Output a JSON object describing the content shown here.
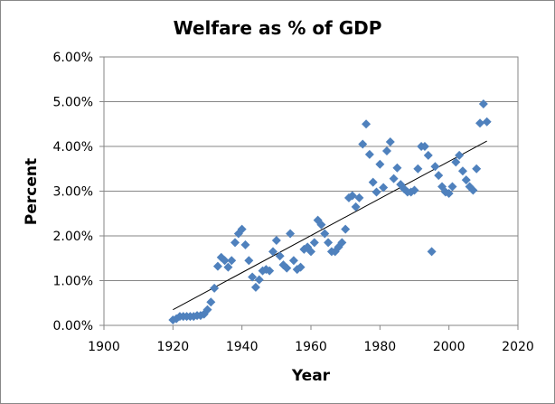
{
  "chart_data": {
    "type": "scatter",
    "title": "Welfare as % of GDP",
    "xlabel": "Year",
    "ylabel": "Percent",
    "xlim": [
      1900,
      2020
    ],
    "ylim": [
      0,
      6
    ],
    "xticks": [
      1900,
      1920,
      1940,
      1960,
      1980,
      2000,
      2020
    ],
    "yticks": [
      0,
      1,
      2,
      3,
      4,
      5,
      6
    ],
    "ytick_labels": [
      "0.00%",
      "1.00%",
      "2.00%",
      "3.00%",
      "4.00%",
      "5.00%",
      "6.00%"
    ],
    "grid": "horizontal",
    "marker_color": "#4f81bd",
    "trendline": {
      "type": "linear",
      "x": [
        1920,
        2011
      ],
      "y": [
        0.35,
        4.12
      ]
    },
    "x": [
      1920,
      1921,
      1922,
      1923,
      1924,
      1925,
      1926,
      1927,
      1928,
      1929,
      1930,
      1931,
      1932,
      1933,
      1934,
      1935,
      1936,
      1937,
      1938,
      1939,
      1940,
      1941,
      1942,
      1943,
      1944,
      1945,
      1946,
      1947,
      1948,
      1949,
      1950,
      1951,
      1952,
      1953,
      1954,
      1955,
      1956,
      1957,
      1958,
      1959,
      1960,
      1961,
      1962,
      1963,
      1964,
      1965,
      1966,
      1967,
      1968,
      1969,
      1970,
      1971,
      1972,
      1973,
      1974,
      1975,
      1976,
      1977,
      1978,
      1979,
      1980,
      1981,
      1982,
      1983,
      1984,
      1985,
      1986,
      1987,
      1988,
      1989,
      1990,
      1991,
      1992,
      1993,
      1994,
      1995,
      1996,
      1997,
      1998,
      1999,
      2000,
      2001,
      2002,
      2003,
      2004,
      2005,
      2006,
      2007,
      2008,
      2009,
      2010,
      2011
    ],
    "y": [
      0.12,
      0.15,
      0.2,
      0.2,
      0.2,
      0.2,
      0.2,
      0.22,
      0.22,
      0.25,
      0.35,
      0.52,
      0.83,
      1.32,
      1.52,
      1.45,
      1.3,
      1.45,
      1.85,
      2.05,
      2.15,
      1.8,
      1.45,
      1.08,
      0.85,
      1.02,
      1.22,
      1.25,
      1.22,
      1.65,
      1.9,
      1.55,
      1.35,
      1.28,
      2.05,
      1.45,
      1.25,
      1.3,
      1.7,
      1.75,
      1.65,
      1.85,
      2.35,
      2.25,
      2.05,
      1.85,
      1.65,
      1.65,
      1.75,
      1.85,
      2.15,
      2.85,
      2.9,
      2.65,
      2.85,
      4.05,
      4.5,
      3.82,
      3.2,
      2.98,
      3.6,
      3.08,
      3.9,
      4.1,
      3.28,
      3.52,
      3.15,
      3.05,
      2.98,
      2.98,
      3.02,
      3.5,
      4.0,
      4.0,
      3.8,
      1.65,
      3.55,
      3.35,
      3.1,
      2.98,
      2.95,
      3.1,
      3.65,
      3.8,
      3.45,
      3.25,
      3.1,
      3.02,
      3.5,
      4.52,
      4.95,
      4.55
    ]
  }
}
